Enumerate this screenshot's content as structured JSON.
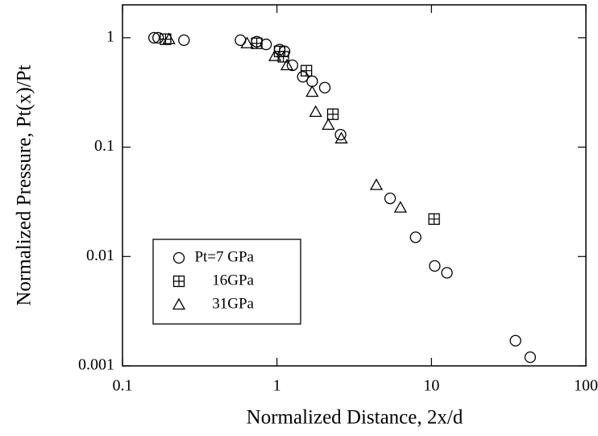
{
  "chart_data": {
    "type": "scatter",
    "xlabel": "Normalized Distance, 2x/d",
    "ylabel": "Normalized Pressure, Pt(x)/Pt",
    "log_x": true,
    "log_y": true,
    "xlim": [
      0.1,
      100
    ],
    "xticks": [
      0.1,
      1,
      10,
      100
    ],
    "ylim": [
      0.001,
      2
    ],
    "yticks": [
      0.001,
      0.01,
      0.1,
      1
    ],
    "legend": "lower-left",
    "series": [
      {
        "name": "Pt=7 GPa",
        "marker": "circle",
        "color": "#000000",
        "x": [
          0.16,
          0.17,
          0.25,
          0.58,
          0.74,
          0.85,
          1.04,
          1.12,
          1.26,
          1.47,
          1.69,
          2.04,
          2.58,
          5.4,
          7.9,
          10.5,
          12.6,
          35,
          43.6
        ],
        "values": [
          1.0,
          1.0,
          0.95,
          0.95,
          0.92,
          0.87,
          0.78,
          0.75,
          0.56,
          0.44,
          0.4,
          0.35,
          0.13,
          0.034,
          0.015,
          0.0082,
          0.0071,
          0.0017,
          0.0012
        ]
      },
      {
        "name": "16GPa",
        "marker": "square-plus",
        "color": "#000000",
        "x": [
          0.19,
          0.74,
          1.04,
          1.1,
          1.55,
          2.3,
          10.4
        ],
        "values": [
          0.97,
          0.89,
          0.75,
          0.67,
          0.5,
          0.2,
          0.022
        ]
      },
      {
        "name": "31GPa",
        "marker": "triangle",
        "color": "#000000",
        "x": [
          0.2,
          0.64,
          0.97,
          1.16,
          1.69,
          1.78,
          2.15,
          2.61,
          4.4,
          6.3
        ],
        "values": [
          0.97,
          0.89,
          0.68,
          0.56,
          0.32,
          0.21,
          0.16,
          0.12,
          0.045,
          0.028
        ]
      }
    ]
  }
}
